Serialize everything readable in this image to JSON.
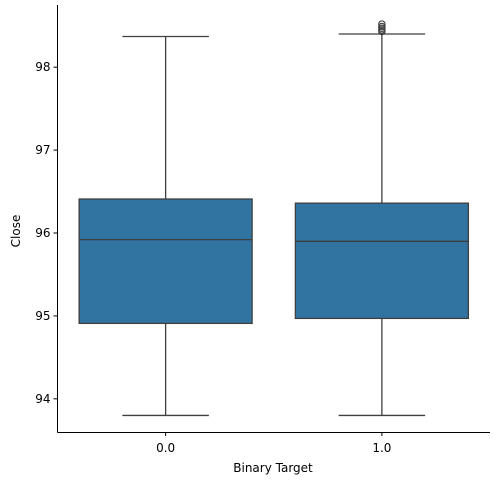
{
  "chart_data": {
    "type": "box",
    "xlabel": "Binary Target",
    "ylabel": "Close",
    "ylim": [
      93.6,
      98.75
    ],
    "yticks": [
      94,
      95,
      96,
      97,
      98
    ],
    "categories": [
      "0.0",
      "1.0"
    ],
    "boxes": [
      {
        "category": "0.0",
        "whisker_low": 93.8,
        "q1": 94.91,
        "median": 95.92,
        "q3": 96.41,
        "whisker_high": 98.37,
        "outliers": []
      },
      {
        "category": "1.0",
        "whisker_low": 93.8,
        "q1": 94.97,
        "median": 95.9,
        "q3": 96.36,
        "whisker_high": 98.4,
        "outliers": [
          98.43,
          98.45,
          98.47,
          98.49,
          98.52
        ]
      }
    ],
    "colors": {
      "box_fill": "#3274a1",
      "line": "#3f3f3f",
      "axis": "#000000"
    }
  }
}
